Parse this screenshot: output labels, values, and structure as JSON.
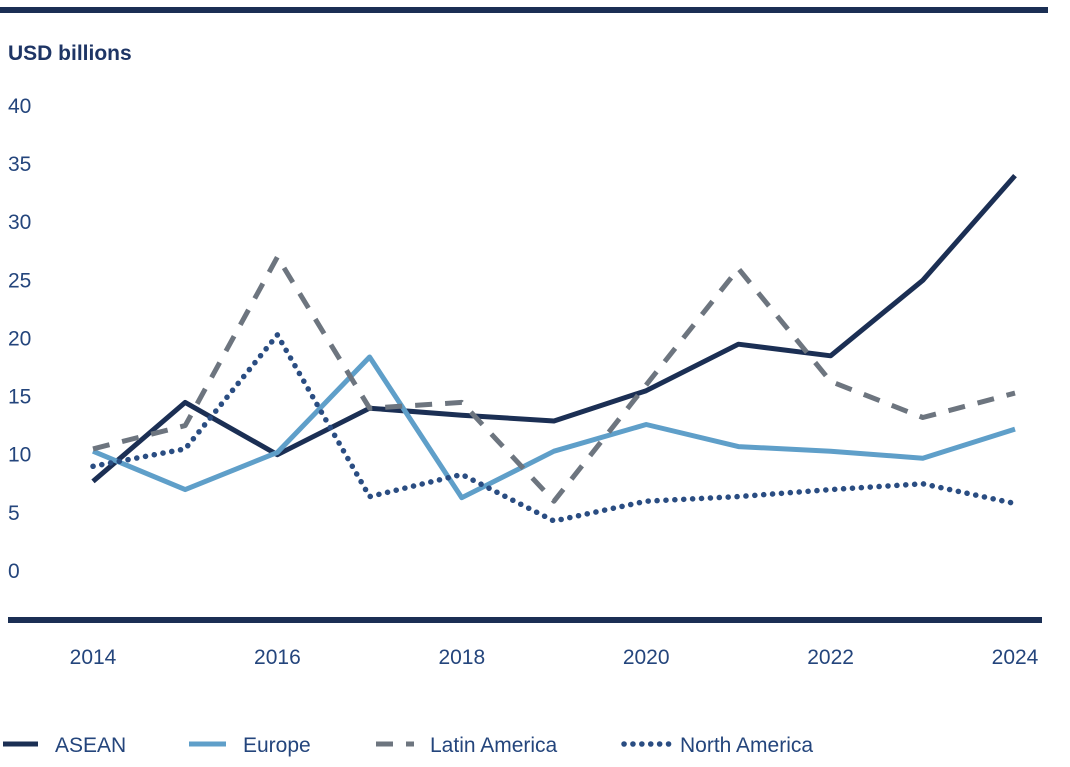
{
  "page": {
    "title_label": "USD billions",
    "top_rule_color": "#1b2f54",
    "axis_line_color": "#1b2f54",
    "label_color": "#24457c"
  },
  "chart_data": {
    "type": "line",
    "title": "USD billions",
    "xlabel": "",
    "ylabel": "USD billions",
    "x": [
      2014,
      2015,
      2016,
      2017,
      2018,
      2019,
      2020,
      2021,
      2022,
      2023,
      2024
    ],
    "x_tick_labels": [
      "2014",
      "2016",
      "2018",
      "2020",
      "2022",
      "2024"
    ],
    "y_ticks": [
      0,
      5,
      10,
      15,
      20,
      25,
      30,
      35,
      40
    ],
    "ylim": [
      0,
      40
    ],
    "grid": false,
    "legend_position": "bottom",
    "series": [
      {
        "name": "ASEAN",
        "style": "solid",
        "color": "#1b2f54",
        "values": [
          7.7,
          14.5,
          10,
          14,
          13.4,
          12.9,
          15.5,
          19.5,
          18.5,
          25,
          34
        ]
      },
      {
        "name": "Europe",
        "style": "solid",
        "color": "#5f9fc9",
        "values": [
          10.3,
          7,
          10.2,
          18.4,
          6.3,
          10.3,
          12.6,
          10.7,
          10.3,
          9.7,
          12.2
        ]
      },
      {
        "name": "Latin America",
        "style": "dashed",
        "color": "#6d757f",
        "values": [
          10.5,
          12.5,
          27,
          14,
          14.5,
          6,
          16,
          26,
          16.3,
          13.2,
          15.3
        ]
      },
      {
        "name": "North America",
        "style": "dotted",
        "color": "#2a4d82",
        "values": [
          9,
          10.5,
          20.3,
          6.4,
          8.3,
          4.3,
          6,
          6.4,
          7,
          7.5,
          5.8
        ]
      }
    ]
  }
}
